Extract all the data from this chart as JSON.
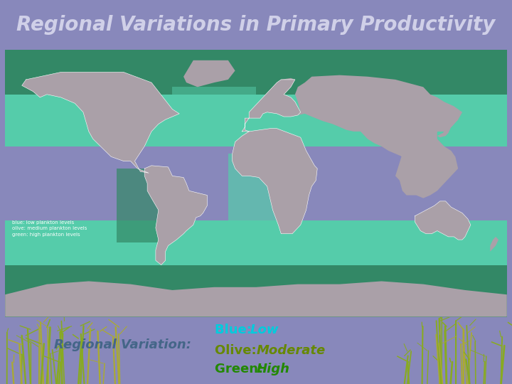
{
  "title": "Regional Variations in Primary Productivity",
  "title_color": "#d0d0e8",
  "title_bg_color": "#8888bb",
  "title_fontsize": 20,
  "title_style": "italic",
  "title_weight": "bold",
  "ocean_low_color": "#00e0e8",
  "ocean_mid_color": "#55ccaa",
  "ocean_high_color": "#338866",
  "land_color": "#aaa0a8",
  "legend_bg_color": "#8899aa",
  "bottom_text_left": "Regional Variation:",
  "bottom_text_left_color": "#446688",
  "bottom_text_left_style": "italic",
  "bottom_text_left_weight": "bold",
  "legend_items": [
    {
      "label_prefix": "Blue: ",
      "label_value": "Low",
      "prefix_color": "#00ccdd",
      "value_color": "#00ccdd",
      "value_style": "italic",
      "value_weight": "bold"
    },
    {
      "label_prefix": "Olive: ",
      "label_value": "Moderate",
      "prefix_color": "#668800",
      "value_color": "#668800",
      "value_style": "italic",
      "value_weight": "bold"
    },
    {
      "label_prefix": "Green: ",
      "label_value": "High",
      "prefix_color": "#228800",
      "value_color": "#228800",
      "value_style": "italic",
      "value_weight": "bold"
    }
  ],
  "map_annotation": "blue: low plankton levels\nolive: medium plankton levels\ngreen: high plankton levels",
  "map_annotation_color": "#ffffff",
  "fig_width": 7.2,
  "fig_height": 5.4,
  "dpi": 100
}
